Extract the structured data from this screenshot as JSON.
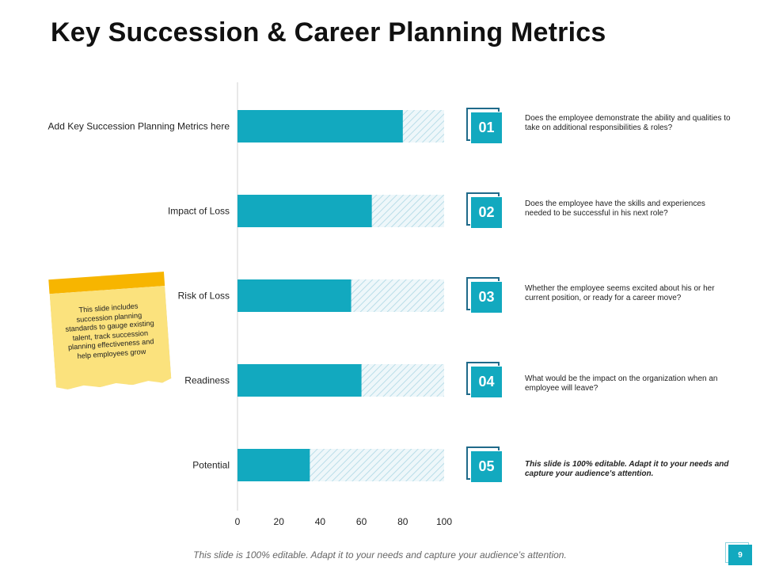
{
  "title": "Key Succession & Career Planning Metrics",
  "chart_data": {
    "type": "bar",
    "orientation": "horizontal",
    "categories": [
      "Add Key Succession Planning Metrics here",
      "Impact of Loss",
      "Risk of Loss",
      "Readiness",
      "Potential"
    ],
    "values": [
      80,
      65,
      55,
      60,
      35
    ],
    "background_value": 100,
    "xlim": [
      0,
      100
    ],
    "ticks": [
      0,
      20,
      40,
      60,
      80,
      100
    ],
    "bar_color": "#12a9bf",
    "background_color": "#c9e6ef"
  },
  "note": {
    "text": "This slide includes succession planning standards to gauge existing talent, track succession planning effectiveness and help employees grow"
  },
  "metrics": [
    {
      "number": "01",
      "text": "Does the employee demonstrate the ability and qualities to take on additional responsibilities & roles?"
    },
    {
      "number": "02",
      "text": "Does the employee have the skills and experiences needed to be successful in his next role?"
    },
    {
      "number": "03",
      "text": "Whether the employee seems excited about his or her current position, or ready for a career move?"
    },
    {
      "number": "04",
      "text": "What would be the impact on the organization when an employee will leave?"
    },
    {
      "number": "05",
      "text": "This slide is 100% editable. Adapt it to your needs and capture your audience's attention."
    }
  ],
  "footer": "This slide is 100% editable. Adapt it to your needs and capture your audience’s attention.",
  "page_number": "9",
  "colors": {
    "accent": "#12a9bf",
    "badge_outline": "#1f6a8a",
    "note_top": "#f7b500",
    "note_body": "#fbe27d"
  }
}
